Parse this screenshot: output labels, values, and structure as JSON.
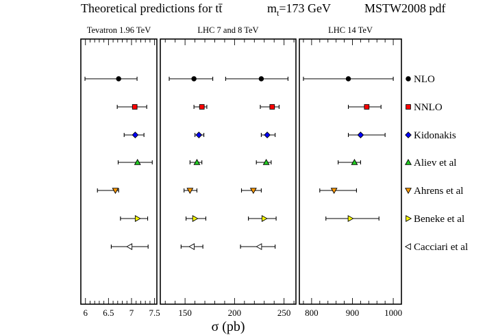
{
  "header": {
    "title": "Theoretical predictions for tt̄",
    "mass_label": "m",
    "mass_sub": "t",
    "mass_value": "=173 GeV",
    "pdf_label": "MSTW2008 pdf"
  },
  "xaxis_label": "σ (pb)",
  "legend": [
    {
      "label": "NLO",
      "marker": "circle",
      "color": "#000000"
    },
    {
      "label": "NNLO",
      "marker": "square",
      "color": "#ff0000"
    },
    {
      "label": "Kidonakis",
      "marker": "diamond",
      "color": "#0000ff"
    },
    {
      "label": "Aliev et al",
      "marker": "triangle-up",
      "color": "#22cc22"
    },
    {
      "label": "Ahrens et al",
      "marker": "triangle-down",
      "color": "#ff9900"
    },
    {
      "label": "Beneke et al",
      "marker": "triangle-right",
      "color": "#ffff00"
    },
    {
      "label": "Cacciari et al",
      "marker": "triangle-left",
      "color": "#ffffff"
    }
  ],
  "chart_data": [
    {
      "type": "scatter",
      "title": "Tevatron 1.96 TeV",
      "xlim": [
        5.9,
        7.55
      ],
      "major_ticks": [
        6,
        6.5,
        7,
        7.5
      ],
      "tick_labels": [
        "6",
        "6.5",
        "7",
        "7.5"
      ],
      "minor_step": 0.1,
      "points": [
        {
          "series": "NLO",
          "value": 6.72,
          "low": 5.99,
          "high": 7.12
        },
        {
          "series": "NNLO",
          "value": 7.07,
          "low": 6.69,
          "high": 7.33
        },
        {
          "series": "Kidonakis",
          "value": 7.08,
          "low": 6.84,
          "high": 7.27
        },
        {
          "series": "Aliev et al",
          "value": 7.13,
          "low": 6.71,
          "high": 7.45
        },
        {
          "series": "Ahrens et al",
          "value": 6.65,
          "low": 6.26,
          "high": 6.72
        },
        {
          "series": "Beneke et al",
          "value": 7.13,
          "low": 6.76,
          "high": 7.35
        },
        {
          "series": "Cacciari et al",
          "value": 6.96,
          "low": 6.56,
          "high": 7.36
        }
      ]
    },
    {
      "type": "scatter",
      "title": "LHC 7 and 8 TeV",
      "xlim": [
        125,
        262
      ],
      "major_ticks": [
        150,
        200,
        250
      ],
      "tick_labels": [
        "150",
        "200",
        "250"
      ],
      "minor_step": 10,
      "points": [
        {
          "series": "NLO",
          "value": 159,
          "low": 134,
          "high": 178,
          "energy": "7 TeV"
        },
        {
          "series": "NLO",
          "value": 227,
          "low": 191,
          "high": 254,
          "energy": "8 TeV"
        },
        {
          "series": "NNLO",
          "value": 167,
          "low": 159,
          "high": 172,
          "energy": "7 TeV"
        },
        {
          "series": "NNLO",
          "value": 238,
          "low": 226,
          "high": 245,
          "energy": "8 TeV"
        },
        {
          "series": "Kidonakis",
          "value": 164,
          "low": 160,
          "high": 169,
          "energy": "7 TeV"
        },
        {
          "series": "Kidonakis",
          "value": 233,
          "low": 227,
          "high": 241,
          "energy": "8 TeV"
        },
        {
          "series": "Aliev et al",
          "value": 162,
          "low": 155,
          "high": 167,
          "energy": "7 TeV"
        },
        {
          "series": "Aliev et al",
          "value": 232,
          "low": 222,
          "high": 237,
          "energy": "8 TeV"
        },
        {
          "series": "Ahrens et al",
          "value": 155,
          "low": 149,
          "high": 162,
          "energy": "7 TeV"
        },
        {
          "series": "Ahrens et al",
          "value": 219,
          "low": 207,
          "high": 227,
          "energy": "8 TeV"
        },
        {
          "series": "Beneke et al",
          "value": 160,
          "low": 151,
          "high": 171,
          "energy": "7 TeV"
        },
        {
          "series": "Beneke et al",
          "value": 230,
          "low": 214,
          "high": 242,
          "energy": "8 TeV"
        },
        {
          "series": "Cacciari et al",
          "value": 157,
          "low": 146,
          "high": 168,
          "energy": "7 TeV"
        },
        {
          "series": "Cacciari et al",
          "value": 225,
          "low": 206,
          "high": 241,
          "energy": "8 TeV"
        }
      ]
    },
    {
      "type": "scatter",
      "title": "LHC 14 TeV",
      "xlim": [
        770,
        1020
      ],
      "major_ticks": [
        800,
        900,
        1000
      ],
      "tick_labels": [
        "800",
        "900",
        "1000"
      ],
      "minor_step": 20,
      "points": [
        {
          "series": "NLO",
          "value": 890,
          "low": 780,
          "high": 1000
        },
        {
          "series": "NNLO",
          "value": 935,
          "low": 890,
          "high": 970
        },
        {
          "series": "Kidonakis",
          "value": 920,
          "low": 890,
          "high": 980
        },
        {
          "series": "Aliev et al",
          "value": 905,
          "low": 865,
          "high": 920
        },
        {
          "series": "Ahrens et al",
          "value": 855,
          "low": 820,
          "high": 910
        },
        {
          "series": "Beneke et al",
          "value": 895,
          "low": 835,
          "high": 965
        },
        {
          "series": "Cacciari et al",
          "value": null,
          "low": null,
          "high": null
        }
      ]
    }
  ]
}
